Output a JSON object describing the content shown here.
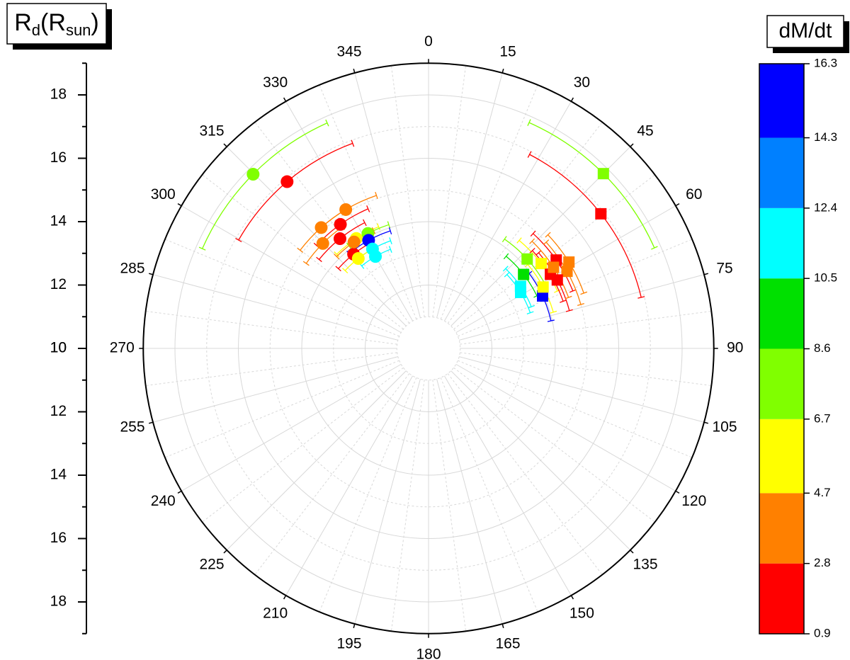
{
  "chart_data": {
    "type": "polar-scatter",
    "r_label_parts": [
      "R",
      "d",
      "(R",
      "sun",
      ")"
    ],
    "rlim": [
      10,
      19
    ],
    "rticks": [
      10,
      12,
      14,
      16,
      18
    ],
    "rminor": [
      11,
      13,
      15,
      17,
      19
    ],
    "thetaticks": [
      0,
      15,
      30,
      45,
      60,
      75,
      90,
      105,
      120,
      135,
      150,
      165,
      180,
      195,
      210,
      225,
      240,
      255,
      270,
      285,
      300,
      315,
      330,
      345
    ],
    "grid": true,
    "colorbar": {
      "title": "dM/dt",
      "ticks": [
        0.9,
        2.8,
        4.7,
        6.7,
        8.6,
        10.5,
        12.4,
        14.3,
        16.3
      ],
      "colors": [
        "#ff0000",
        "#ff8000",
        "#ffff00",
        "#80ff00",
        "#00e000",
        "#00ffff",
        "#0080ff",
        "#0000ff"
      ]
    },
    "series": [
      {
        "marker": "circle",
        "theta": [
          314.8,
          319.7,
          329.2,
          318.4,
          314.8,
          324.6,
          321.1,
          326.7,
          332.2,
          331.0,
          330.6,
          330.0,
          321.5,
          325,
          322
        ],
        "r": [
          17.8,
          16.9,
          15.1,
          15.1,
          14.7,
          14.8,
          14.45,
          14.15,
          14.1,
          13.9,
          13.6,
          13.35,
          13.8,
          14.1,
          13.6
        ],
        "theta_err": [
          21,
          20,
          12,
          11,
          10,
          12,
          12,
          11,
          10,
          11,
          10,
          9,
          10,
          10,
          9
        ],
        "dmdt": [
          7.6,
          1.9,
          3.7,
          3.7,
          3.7,
          1.9,
          1.9,
          5.7,
          7.6,
          15.3,
          11.4,
          11.4,
          1.9,
          3.7,
          5.7
        ]
      },
      {
        "marker": "square",
        "theta": [
          45,
          52,
          55.3,
          60.9,
          58.4,
          47.8,
          52.1,
          58.7,
          56,
          65.3,
          61.8,
          53,
          58.7,
          62,
          57
        ],
        "r": [
          17.8,
          16.9,
          14.9,
          15.0,
          15.2,
          14.2,
          13.8,
          13.4,
          13.5,
          13.96,
          14.1,
          14.45,
          14.5,
          14.6,
          14.7
        ],
        "theta_err": [
          21,
          24.5,
          13,
          13,
          12,
          13,
          12,
          12,
          12,
          12,
          12,
          13,
          12,
          13,
          13
        ],
        "dmdt": [
          7.6,
          1.9,
          1.9,
          3.7,
          3.7,
          7.6,
          9.5,
          11.4,
          11.4,
          15.3,
          5.7,
          5.7,
          1.9,
          1.9,
          3.7
        ]
      }
    ]
  }
}
